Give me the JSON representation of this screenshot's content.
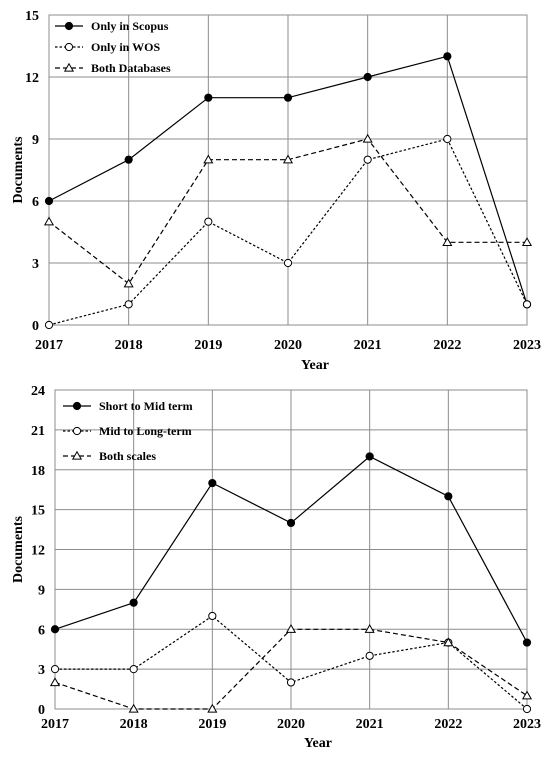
{
  "chart_data": [
    {
      "type": "line",
      "title": "",
      "xlabel": "Year",
      "ylabel": "Documents",
      "categories": [
        "2017",
        "2018",
        "2019",
        "2020",
        "2021",
        "2022",
        "2023"
      ],
      "yticks": [
        "0",
        "3",
        "6",
        "9",
        "12",
        "15"
      ],
      "ylim": [
        0,
        15
      ],
      "grid": true,
      "legend_position": "top-left",
      "series": [
        {
          "name": "Only in Scopus",
          "marker": "filled-circle",
          "line": "solid",
          "values": [
            6,
            8,
            11,
            11,
            12,
            13,
            1
          ]
        },
        {
          "name": "Only in WOS",
          "marker": "open-circle",
          "line": "dotted",
          "values": [
            0,
            1,
            5,
            3,
            8,
            9,
            1
          ]
        },
        {
          "name": "Both Databases",
          "marker": "open-triangle",
          "line": "dashed",
          "values": [
            5,
            2,
            8,
            8,
            9,
            4,
            4
          ]
        }
      ]
    },
    {
      "type": "line",
      "title": "",
      "xlabel": "Year",
      "ylabel": "Documents",
      "categories": [
        "2017",
        "2018",
        "2019",
        "2020",
        "2021",
        "2022",
        "2023"
      ],
      "yticks": [
        "0",
        "3",
        "6",
        "9",
        "12",
        "15",
        "18",
        "21",
        "24"
      ],
      "ylim": [
        0,
        24
      ],
      "grid": true,
      "legend_position": "top-left",
      "series": [
        {
          "name": "Short to Mid term",
          "marker": "filled-circle",
          "line": "solid",
          "values": [
            6,
            8,
            17,
            14,
            19,
            16,
            5
          ]
        },
        {
          "name": "Mid to Long-term",
          "marker": "open-circle",
          "line": "dotted",
          "values": [
            3,
            3,
            7,
            2,
            4,
            5,
            0
          ]
        },
        {
          "name": "Both scales",
          "marker": "open-triangle",
          "line": "dashed",
          "values": [
            2,
            0,
            0,
            6,
            6,
            5,
            1
          ]
        }
      ]
    }
  ]
}
